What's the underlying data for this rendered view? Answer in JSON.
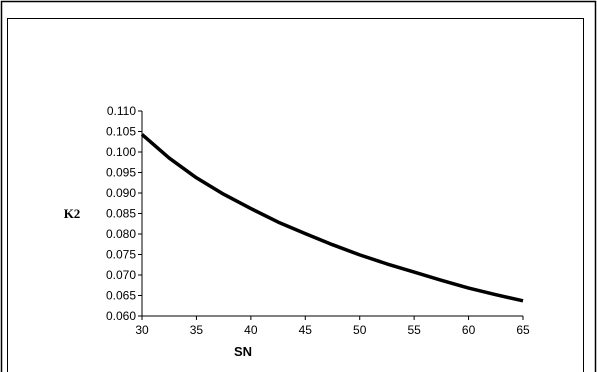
{
  "chart_data": {
    "type": "line",
    "title": "",
    "xlabel": "SN",
    "ylabel": "K2",
    "xlim": [
      30,
      65
    ],
    "ylim": [
      0.06,
      0.11
    ],
    "x_ticks": [
      30,
      35,
      40,
      45,
      50,
      55,
      60,
      65
    ],
    "y_ticks": [
      {
        "value": 0.06,
        "label": "0.060"
      },
      {
        "value": 0.065,
        "label": "0.065"
      },
      {
        "value": 0.07,
        "label": "0.070"
      },
      {
        "value": 0.075,
        "label": "0.075"
      },
      {
        "value": 0.08,
        "label": "0.080"
      },
      {
        "value": 0.085,
        "label": "0.085"
      },
      {
        "value": 0.09,
        "label": "0.090"
      },
      {
        "value": 0.095,
        "label": "0.095"
      },
      {
        "value": 0.1,
        "label": "0.100"
      },
      {
        "value": 0.105,
        "label": "0.105"
      },
      {
        "value": 0.11,
        "label": "0.110"
      }
    ],
    "grid": false,
    "legend": "none",
    "series": [
      {
        "color": "#000000",
        "x": [
          30,
          32.5,
          35,
          37.5,
          40,
          42.5,
          45,
          47.5,
          50,
          52.5,
          55,
          57.5,
          60,
          62.5,
          65
        ],
        "y": [
          0.1043,
          0.0985,
          0.0937,
          0.0897,
          0.0862,
          0.0829,
          0.0801,
          0.0774,
          0.0749,
          0.0727,
          0.0707,
          0.0687,
          0.0668,
          0.0652,
          0.0637
        ]
      }
    ]
  }
}
